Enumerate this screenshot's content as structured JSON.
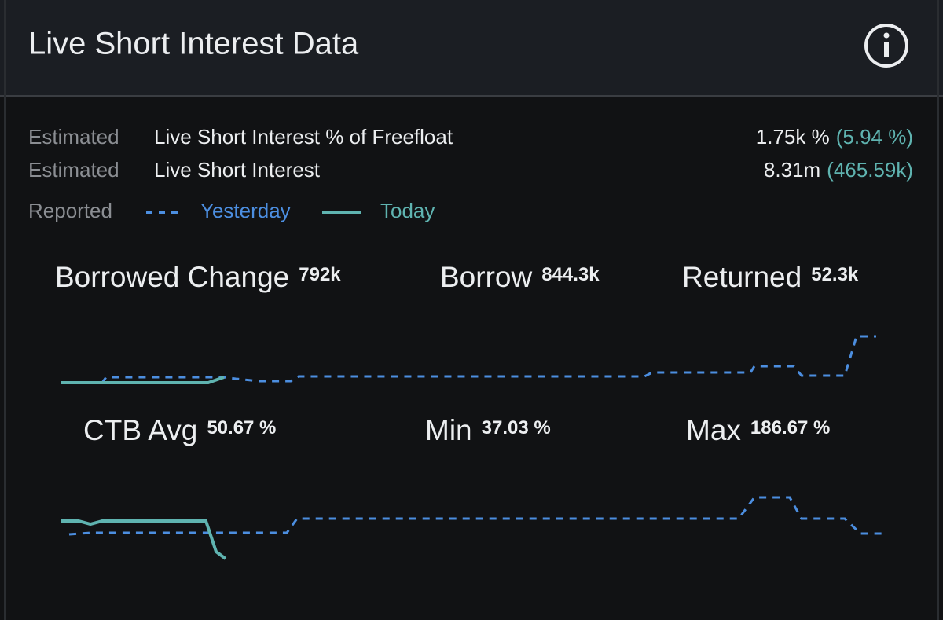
{
  "header": {
    "title": "Live Short Interest Data"
  },
  "rows": [
    {
      "label": "Estimated",
      "name": "Live Short Interest % of Freefloat",
      "value": "1.75k %",
      "change": "(5.94 %)"
    },
    {
      "label": "Estimated",
      "name": "Live Short Interest",
      "value": "8.31m",
      "change": "(465.59k)"
    }
  ],
  "legend": {
    "label": "Reported",
    "series": [
      {
        "name": "Yesterday"
      },
      {
        "name": "Today"
      }
    ]
  },
  "stats": [
    [
      {
        "label": "Borrowed Change",
        "value": "792k"
      },
      {
        "label": "Borrow",
        "value": "844.3k"
      },
      {
        "label": "Returned",
        "value": "52.3k"
      }
    ],
    [
      {
        "label": "CTB Avg",
        "value": "50.67 %"
      },
      {
        "label": "Min",
        "value": "37.03 %"
      },
      {
        "label": "Max",
        "value": "186.67 %"
      }
    ]
  ]
}
